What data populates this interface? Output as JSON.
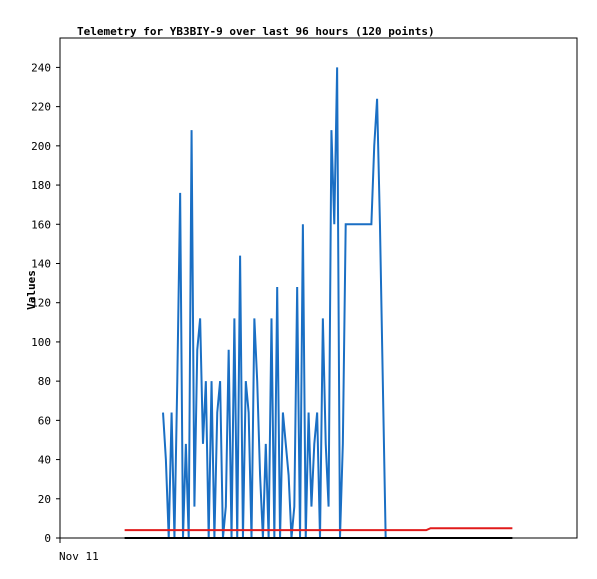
{
  "chart_data": {
    "type": "line",
    "title": "Telemetry for YB3BIY-9 over last 96 hours (120 points)",
    "ylabel": "Values",
    "xlabel": "",
    "x_tick_label": "Nov 11",
    "ylim": [
      0,
      255
    ],
    "xlim": [
      0,
      96
    ],
    "y_ticks": [
      0,
      20,
      40,
      60,
      80,
      100,
      120,
      140,
      160,
      180,
      200,
      220,
      240
    ],
    "grid": false,
    "legend": "none",
    "series": [
      {
        "color": "#1a6fc4",
        "x": [
          19.13,
          19.66,
          20.19,
          20.72,
          21.25,
          21.78,
          22.31,
          22.84,
          23.37,
          23.9,
          24.43,
          24.96,
          25.49,
          26.02,
          26.55,
          27.08,
          27.61,
          28.14,
          28.67,
          29.2,
          29.73,
          30.26,
          30.79,
          31.32,
          31.85,
          32.38,
          32.91,
          33.44,
          33.97,
          34.5,
          35.03,
          35.56,
          36.09,
          36.62,
          37.15,
          37.68,
          38.21,
          38.74,
          39.27,
          39.8,
          40.33,
          40.86,
          41.39,
          41.92,
          42.45,
          42.98,
          43.51,
          44.04,
          44.57,
          45.1,
          45.63,
          46.16,
          46.69,
          47.22,
          47.75,
          48.28,
          48.81,
          49.34,
          49.87,
          50.4,
          50.93,
          51.46,
          51.99,
          52.52,
          53.05,
          53.58,
          54.11,
          54.64,
          55.17,
          55.7,
          56.23,
          56.76,
          57.29,
          57.82,
          58.35,
          58.88,
          59.41,
          59.94,
          60.47,
          61.0,
          61.53,
          62.06,
          62.59,
          63.12,
          63.65,
          64.18,
          64.71,
          65.24,
          65.77,
          66.3,
          66.83,
          67.36,
          67.89,
          68.42,
          68.95,
          69.48,
          70.01,
          70.54,
          71.07,
          71.6,
          72.13,
          72.66,
          73.19,
          73.72,
          74.25,
          74.78,
          75.31,
          75.84,
          76.37,
          76.9,
          77.43,
          77.96,
          78.49,
          79.02,
          79.55,
          80.08,
          80.61,
          81.14,
          81.67,
          82.2
        ],
        "y": [
          64,
          40,
          0,
          64,
          0,
          80,
          176,
          0,
          48,
          0,
          208,
          16,
          96,
          112,
          48,
          80,
          0,
          80,
          0,
          64,
          80,
          0,
          16,
          96,
          0,
          112,
          0,
          144,
          0,
          80,
          64,
          0,
          112,
          80,
          32,
          0,
          48,
          0,
          112,
          0,
          128,
          0,
          64,
          48,
          32,
          0,
          16,
          128,
          0,
          160,
          0,
          64,
          16,
          48,
          64,
          0,
          112,
          48,
          16,
          208,
          160,
          240,
          0,
          48,
          160,
          160,
          160,
          160,
          160,
          160,
          160,
          160,
          160,
          160,
          200,
          224,
          160,
          80,
          0,
          0,
          0,
          0,
          0,
          0,
          0,
          0,
          0,
          0,
          0,
          0,
          0,
          0,
          0,
          0,
          0,
          0,
          0,
          0,
          0,
          0,
          0,
          0,
          0,
          0,
          0,
          0,
          0,
          0,
          0,
          0,
          0,
          0,
          0,
          0,
          0,
          0,
          0,
          0,
          0,
          0
        ]
      },
      {
        "color": "#e11b1b",
        "x": [
          12.0,
          68.0,
          68.8,
          84.0
        ],
        "y": [
          4,
          4,
          5,
          5
        ]
      },
      {
        "color": "#000000",
        "x": [
          12.0,
          84.0
        ],
        "y": [
          0,
          0
        ]
      }
    ]
  }
}
